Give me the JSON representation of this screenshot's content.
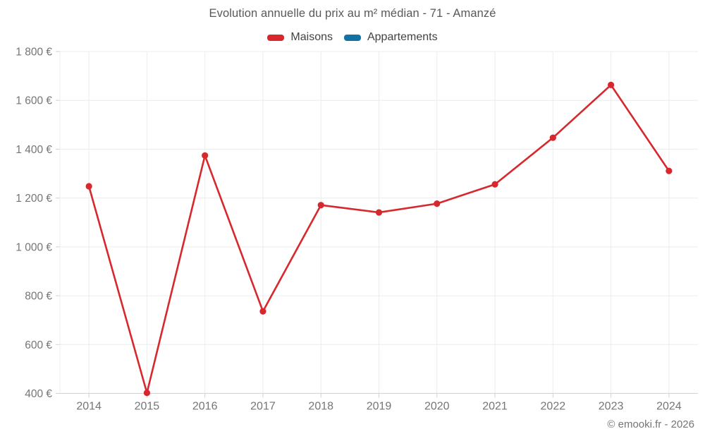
{
  "chart_data": {
    "type": "line",
    "title": "Evolution annuelle du prix au m² médian - 71 - Amanzé",
    "x": [
      "2014",
      "2015",
      "2016",
      "2017",
      "2018",
      "2019",
      "2020",
      "2021",
      "2022",
      "2023",
      "2024"
    ],
    "series": [
      {
        "name": "Maisons",
        "color": "#d7282d",
        "values": [
          1248,
          402,
          1374,
          736,
          1171,
          1141,
          1177,
          1256,
          1447,
          1663,
          1311
        ]
      },
      {
        "name": "Appartements",
        "color": "#1272a3",
        "values": []
      }
    ],
    "legend": [
      {
        "label": "Maisons",
        "color": "#d7282d"
      },
      {
        "label": "Appartements",
        "color": "#1272a3"
      }
    ],
    "ylim": [
      400,
      1800
    ],
    "yticks": [
      400,
      600,
      800,
      1000,
      1200,
      1400,
      1600,
      1800
    ],
    "ytick_labels": [
      "400 €",
      "600 €",
      "800 €",
      "1 000 €",
      "1 200 €",
      "1 400 €",
      "1 600 €",
      "1 800 €"
    ],
    "grid": true,
    "legend_position": "top"
  },
  "footer": {
    "copyright": "© emooki.fr - 2026"
  },
  "colors": {
    "gridline": "#ececec",
    "axis": "#d2d2d2",
    "tick_label": "#757575",
    "title_text": "#595959"
  }
}
